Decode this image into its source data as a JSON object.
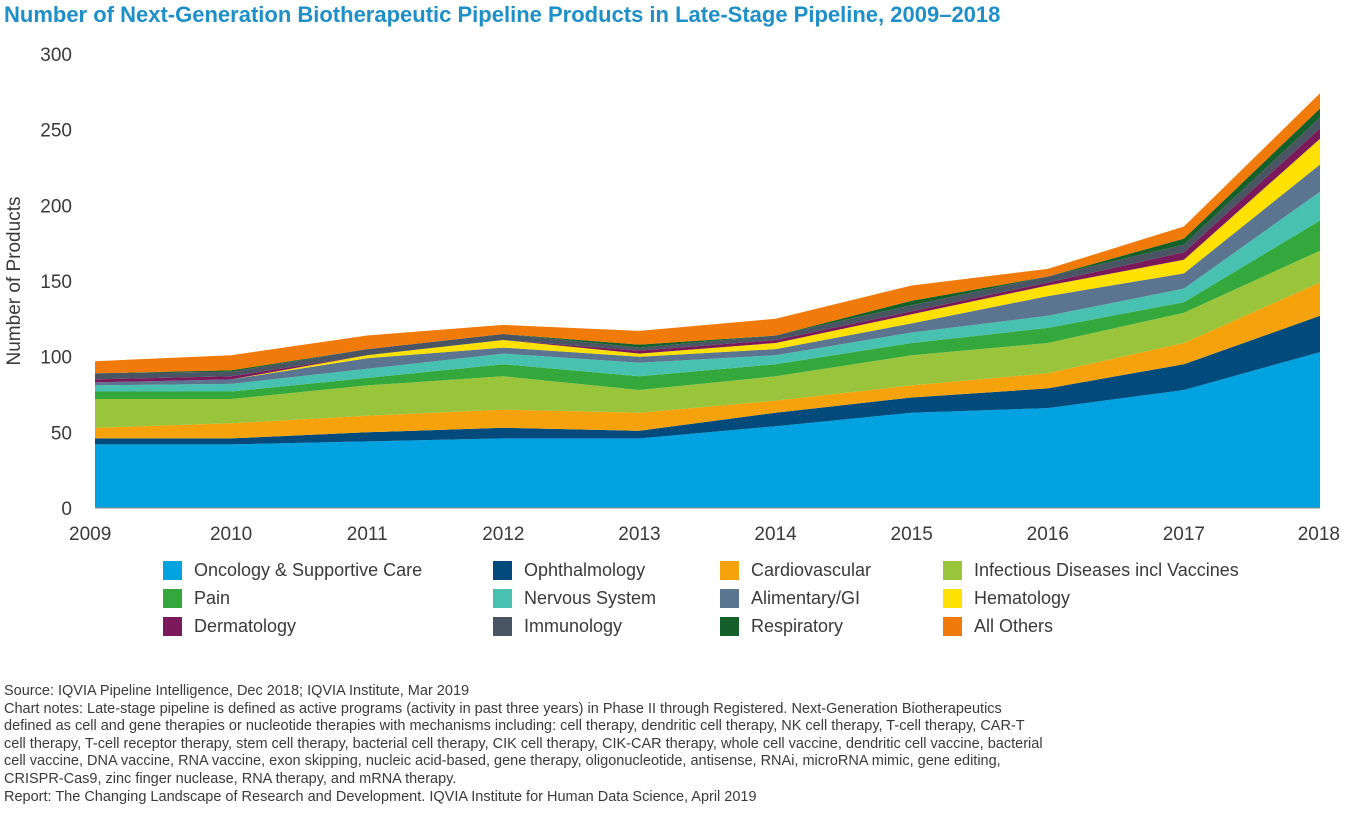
{
  "title": "Number of Next-Generation Biotherapeutic Pipeline Products in Late-Stage Pipeline, 2009–2018",
  "chart_data": {
    "type": "area",
    "stacked": true,
    "title": "Number of Next-Generation Biotherapeutic Pipeline Products in Late-Stage Pipeline, 2009–2018",
    "xlabel": "",
    "ylabel": "Number of Products",
    "ylim": [
      0,
      300
    ],
    "yticks": [
      0,
      50,
      100,
      150,
      200,
      250,
      300
    ],
    "categories": [
      "2009",
      "2010",
      "2011",
      "2012",
      "2013",
      "2014",
      "2015",
      "2016",
      "2017",
      "2018"
    ],
    "series": [
      {
        "name": "Oncology & Supportive Care",
        "color": "#00a3e0",
        "values": [
          42,
          42,
          44,
          46,
          46,
          54,
          63,
          66,
          78,
          103
        ]
      },
      {
        "name": "Ophthalmology",
        "color": "#004b7c",
        "values": [
          4,
          4,
          6,
          7,
          5,
          9,
          10,
          13,
          17,
          24
        ]
      },
      {
        "name": "Cardiovascular",
        "color": "#f5a20c",
        "values": [
          7,
          10,
          11,
          12,
          12,
          8,
          8,
          10,
          14,
          22
        ]
      },
      {
        "name": "Infectious Diseases incl Vaccines",
        "color": "#9bc43d",
        "values": [
          19,
          16,
          20,
          22,
          15,
          16,
          20,
          20,
          20,
          21
        ]
      },
      {
        "name": "Pain",
        "color": "#35a83d",
        "values": [
          5,
          5,
          5,
          8,
          9,
          8,
          8,
          10,
          7,
          20
        ]
      },
      {
        "name": "Nervous System",
        "color": "#48c1b1",
        "values": [
          4,
          5,
          6,
          7,
          9,
          6,
          7,
          8,
          9,
          19
        ]
      },
      {
        "name": "Alimentary/GI",
        "color": "#5b7590",
        "values": [
          2,
          3,
          7,
          4,
          4,
          4,
          6,
          13,
          10,
          18
        ]
      },
      {
        "name": "Hematology",
        "color": "#ffe100",
        "values": [
          0,
          0,
          2,
          5,
          2,
          4,
          6,
          7,
          9,
          17
        ]
      },
      {
        "name": "Dermatology",
        "color": "#7a1a5a",
        "values": [
          2,
          2,
          0,
          0,
          2,
          2,
          2,
          2,
          5,
          7
        ]
      },
      {
        "name": "Immunology",
        "color": "#4a5563",
        "values": [
          4,
          3,
          4,
          4,
          2,
          3,
          4,
          4,
          5,
          7
        ]
      },
      {
        "name": "Respiratory",
        "color": "#155f2b",
        "values": [
          0,
          1,
          0,
          0,
          2,
          0,
          3,
          0,
          4,
          6
        ]
      },
      {
        "name": "All Others",
        "color": "#f07a0a",
        "values": [
          8,
          10,
          9,
          6,
          9,
          11,
          10,
          5,
          8,
          10
        ]
      }
    ]
  },
  "notes": {
    "source": "Source: IQVIA Pipeline Intelligence, Dec 2018; IQVIA Institute, Mar 2019",
    "chart_notes_lines": [
      "Chart notes: Late-stage pipeline is defined as active programs (activity in past three years) in Phase II through Registered. Next-Generation Biotherapeutics",
      "defined as cell and gene therapies or nucleotide therapies with mechanisms including: cell therapy, dendritic cell therapy, NK cell therapy, T-cell therapy, CAR-T",
      "cell therapy, T-cell receptor therapy, stem cell therapy, bacterial cell therapy, CIK cell therapy, CIK-CAR therapy, whole cell vaccine, dendritic cell vaccine, bacterial",
      "cell vaccine, DNA vaccine, RNA vaccine, exon skipping, nucleic acid-based, gene therapy, oligonucleotide, antisense, RNAi, microRNA mimic, gene editing,",
      "CRISPR-Cas9, zinc finger nuclease, RNA therapy, and mRNA therapy."
    ],
    "report": "Report: The Changing Landscape of Research and Development. IQVIA Institute for Human Data Science, April 2019"
  }
}
